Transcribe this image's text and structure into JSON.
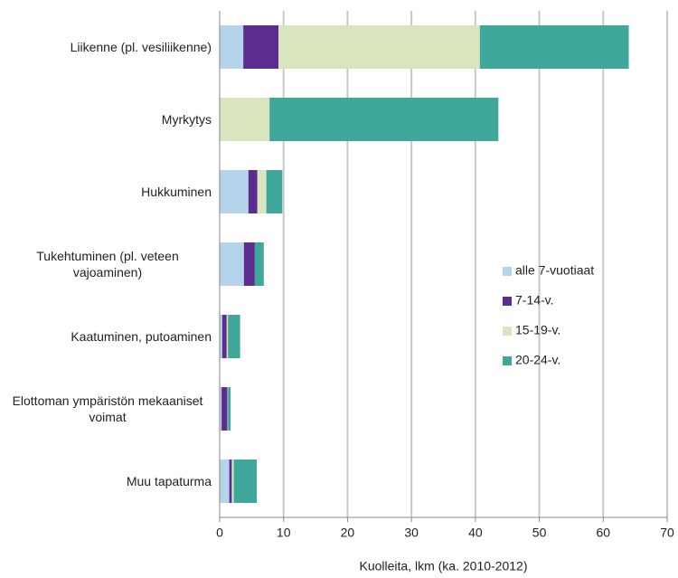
{
  "chart_data": {
    "type": "stacked-barh",
    "categories": [
      "Liikenne (pl. vesiliikenne)",
      "Myrkytys",
      "Hukkuminen",
      "Tukehtuminen (pl. veteen vajoaminen)",
      "Kaatuminen, putoaminen",
      "Elottoman ympäristön mekaaniset voimat",
      "Muu tapaturma"
    ],
    "series": [
      {
        "name": "alle 7-vuotiaat",
        "color": "#b5d3ea",
        "values": [
          3.7,
          0,
          4.5,
          3.8,
          0.4,
          0.3,
          1.5
        ]
      },
      {
        "name": "7-14-v.",
        "color": "#5b2d8e",
        "values": [
          5.5,
          0,
          1.4,
          1.7,
          0.7,
          0.9,
          0.4
        ]
      },
      {
        "name": "15-19-v.",
        "color": "#d9e5bf",
        "values": [
          31.5,
          7.8,
          1.4,
          0,
          0.2,
          0.1,
          0.3
        ]
      },
      {
        "name": "20-24-v.",
        "color": "#40a89b",
        "values": [
          23.3,
          35.8,
          2.5,
          1.4,
          1.9,
          0.4,
          3.6
        ]
      }
    ],
    "xlabel": "Kuolleita, lkm (ka. 2010-2012)",
    "xlim": [
      0,
      70
    ],
    "xticks": [
      0,
      10,
      20,
      30,
      40,
      50,
      60,
      70
    ],
    "grid": true
  }
}
